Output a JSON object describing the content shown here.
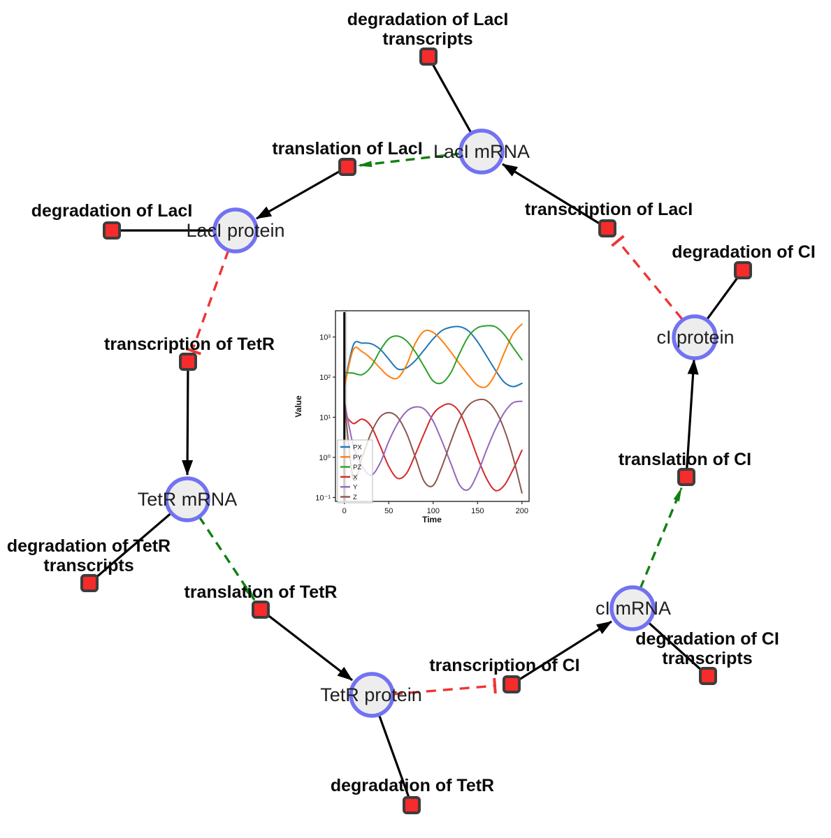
{
  "diagram": {
    "species": [
      {
        "id": "laci-mrna",
        "label": "LacI mRNA"
      },
      {
        "id": "laci-protein",
        "label": "LacI protein"
      },
      {
        "id": "tetr-mrna",
        "label": "TetR mRNA"
      },
      {
        "id": "tetr-protein",
        "label": "TetR protein"
      },
      {
        "id": "ci-mrna",
        "label": "cI mRNA"
      },
      {
        "id": "ci-protein",
        "label": "cI protein"
      }
    ],
    "reactions": [
      {
        "id": "degradation-laci-transcripts",
        "label_lines": [
          "degradation of LacI",
          "transcripts"
        ]
      },
      {
        "id": "translation-laci",
        "label_lines": [
          "translation of LacI"
        ]
      },
      {
        "id": "degradation-laci",
        "label_lines": [
          "degradation of LacI"
        ]
      },
      {
        "id": "transcription-tetr",
        "label_lines": [
          "transcription of TetR"
        ]
      },
      {
        "id": "transcription-laci",
        "label_lines": [
          "transcription of LacI"
        ]
      },
      {
        "id": "degradation-ci",
        "label_lines": [
          "degradation of CI"
        ]
      },
      {
        "id": "translation-ci",
        "label_lines": [
          "translation of CI"
        ]
      },
      {
        "id": "transcription-ci",
        "label_lines": [
          "transcription of CI"
        ]
      },
      {
        "id": "degradation-ci-transcripts",
        "label_lines": [
          "degradation of CI",
          "transcripts"
        ]
      },
      {
        "id": "degradation-tetr-transcripts",
        "label_lines": [
          "degradation of TetR",
          "transcripts"
        ]
      },
      {
        "id": "translation-tetr",
        "label_lines": [
          "translation of TetR"
        ]
      },
      {
        "id": "degradation-tetr",
        "label_lines": [
          "degradation of TetR"
        ]
      }
    ],
    "colors": {
      "species_fill": "#ededed",
      "species_stroke": "#7272f2",
      "reaction_fill": "#f62b2b",
      "reaction_stroke": "#3d3d3d",
      "edge_reaction": "#000000",
      "edge_activation": "#108010",
      "edge_inhibition": "#ef3434"
    }
  },
  "chart_data": {
    "type": "line",
    "xlabel": "Time",
    "ylabel": "Value",
    "y_scale": "log",
    "xlim": [
      -10,
      208
    ],
    "ylim": [
      0.08,
      4500
    ],
    "x_ticks": [
      0,
      50,
      100,
      150,
      200
    ],
    "x_tick_labels": [
      "0",
      "50",
      "100",
      "150",
      "200"
    ],
    "y_ticks": [
      0.1,
      1,
      10,
      100,
      1000
    ],
    "y_tick_labels": [
      "10⁻¹",
      "10⁰",
      "10¹",
      "10²",
      "10³"
    ],
    "legend_position": "lower left",
    "annotations": {
      "vline_x": 0,
      "shaded_span": [
        0,
        3
      ]
    },
    "x": [
      0,
      10,
      20,
      30,
      40,
      50,
      60,
      70,
      80,
      90,
      100,
      110,
      120,
      130,
      140,
      150,
      160,
      170,
      180,
      190,
      200
    ],
    "series": [
      {
        "name": "PX",
        "color": "#1f77b4",
        "values": [
          60,
          620,
          700,
          680,
          500,
          280,
          160,
          170,
          260,
          480,
          900,
          1450,
          1750,
          1800,
          1400,
          760,
          340,
          150,
          75,
          58,
          70
        ]
      },
      {
        "name": "PY",
        "color": "#ff7f0e",
        "values": [
          55,
          480,
          430,
          290,
          170,
          105,
          95,
          200,
          700,
          1400,
          1300,
          800,
          420,
          210,
          110,
          62,
          58,
          120,
          400,
          1200,
          2100
        ]
      },
      {
        "name": "PZ",
        "color": "#2ca02c",
        "values": [
          130,
          125,
          115,
          180,
          450,
          900,
          1050,
          800,
          420,
          180,
          80,
          72,
          130,
          400,
          1050,
          1700,
          1900,
          1800,
          1150,
          550,
          270
        ]
      },
      {
        "name": "X",
        "color": "#d62728",
        "values": [
          12,
          7,
          9,
          6,
          2,
          0.6,
          0.3,
          0.4,
          1.2,
          4,
          12,
          19,
          21,
          13,
          4,
          1,
          0.3,
          0.15,
          0.2,
          0.5,
          1.5
        ]
      },
      {
        "name": "Y",
        "color": "#9467bd",
        "values": [
          25,
          2,
          0.6,
          0.36,
          0.7,
          2.5,
          7,
          14,
          18,
          16,
          8,
          2.5,
          0.7,
          0.2,
          0.16,
          0.4,
          1.5,
          5,
          13,
          23,
          25
        ]
      },
      {
        "name": "Z",
        "color": "#8c564b",
        "values": [
          25,
          0.3,
          1,
          4,
          10,
          13,
          10,
          4,
          1,
          0.25,
          0.2,
          0.6,
          2.5,
          9,
          20,
          27,
          26,
          15,
          5,
          1,
          0.13
        ]
      }
    ]
  }
}
